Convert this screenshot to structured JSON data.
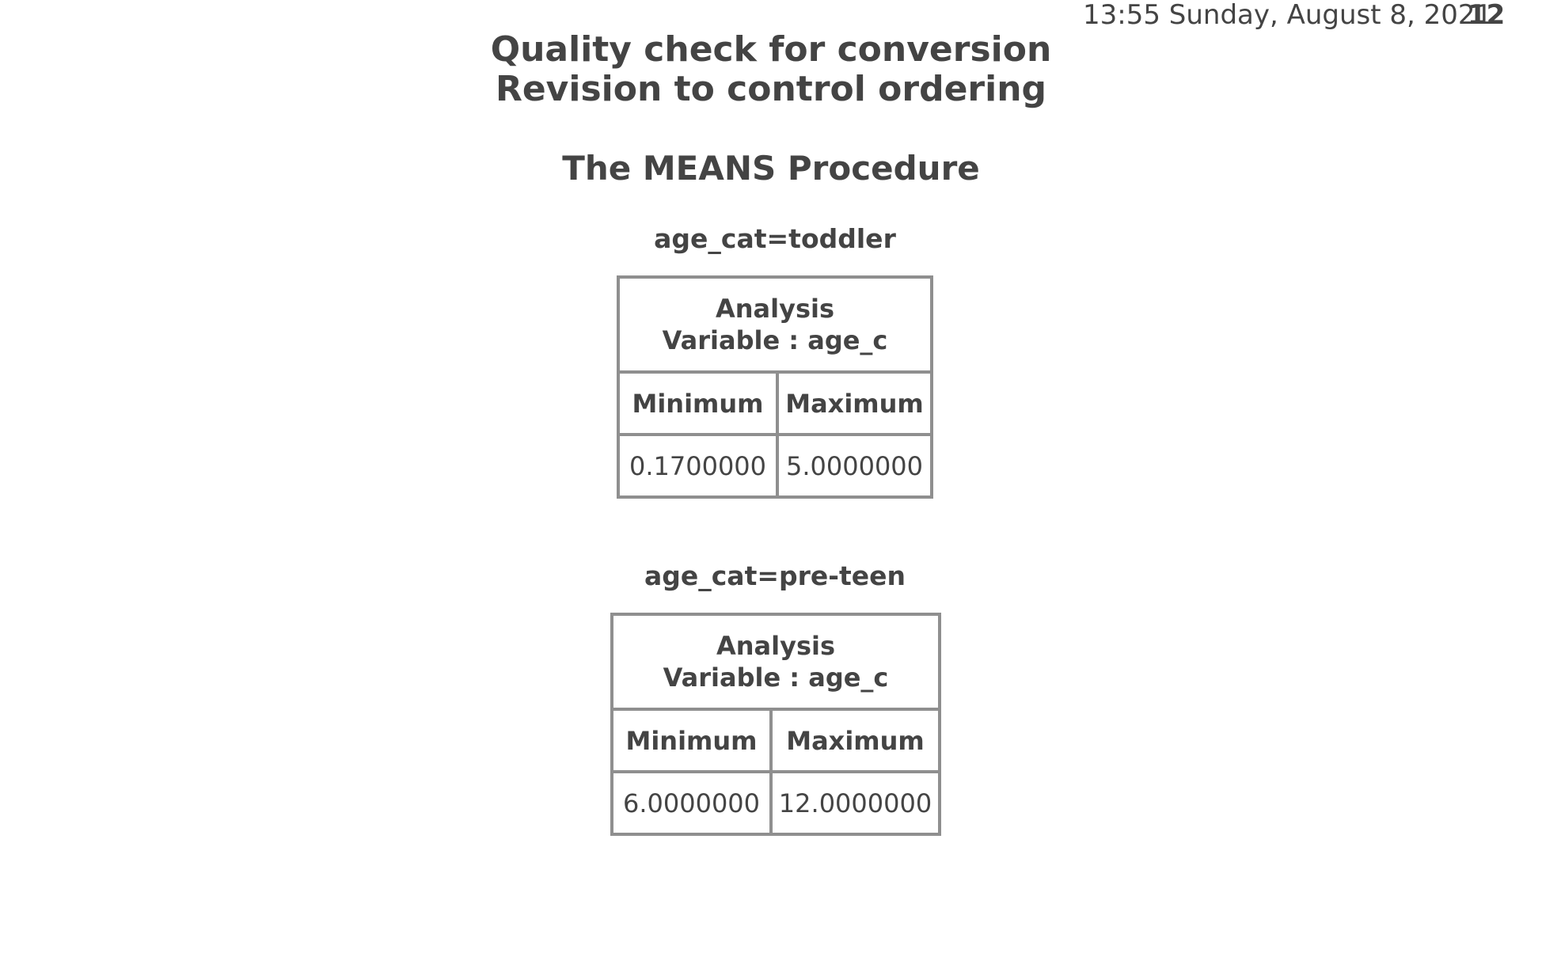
{
  "header": {
    "datetime": "13:55 Sunday, August 8, 2021",
    "page_number": "12"
  },
  "titles": {
    "line1": "Quality check for conversion",
    "line2": "Revision to control ordering"
  },
  "procedure": "The MEANS Procedure",
  "groups": [
    {
      "by_label": "age_cat=toddler",
      "analysis_line1": "Analysis",
      "analysis_line2": "Variable : age_c",
      "columns": [
        "Minimum",
        "Maximum"
      ],
      "values": [
        "0.1700000",
        "5.0000000"
      ]
    },
    {
      "by_label": "age_cat=pre-teen",
      "analysis_line1": "Analysis",
      "analysis_line2": "Variable : age_c",
      "columns": [
        "Minimum",
        "Maximum"
      ],
      "values": [
        "6.0000000",
        "12.0000000"
      ]
    }
  ]
}
